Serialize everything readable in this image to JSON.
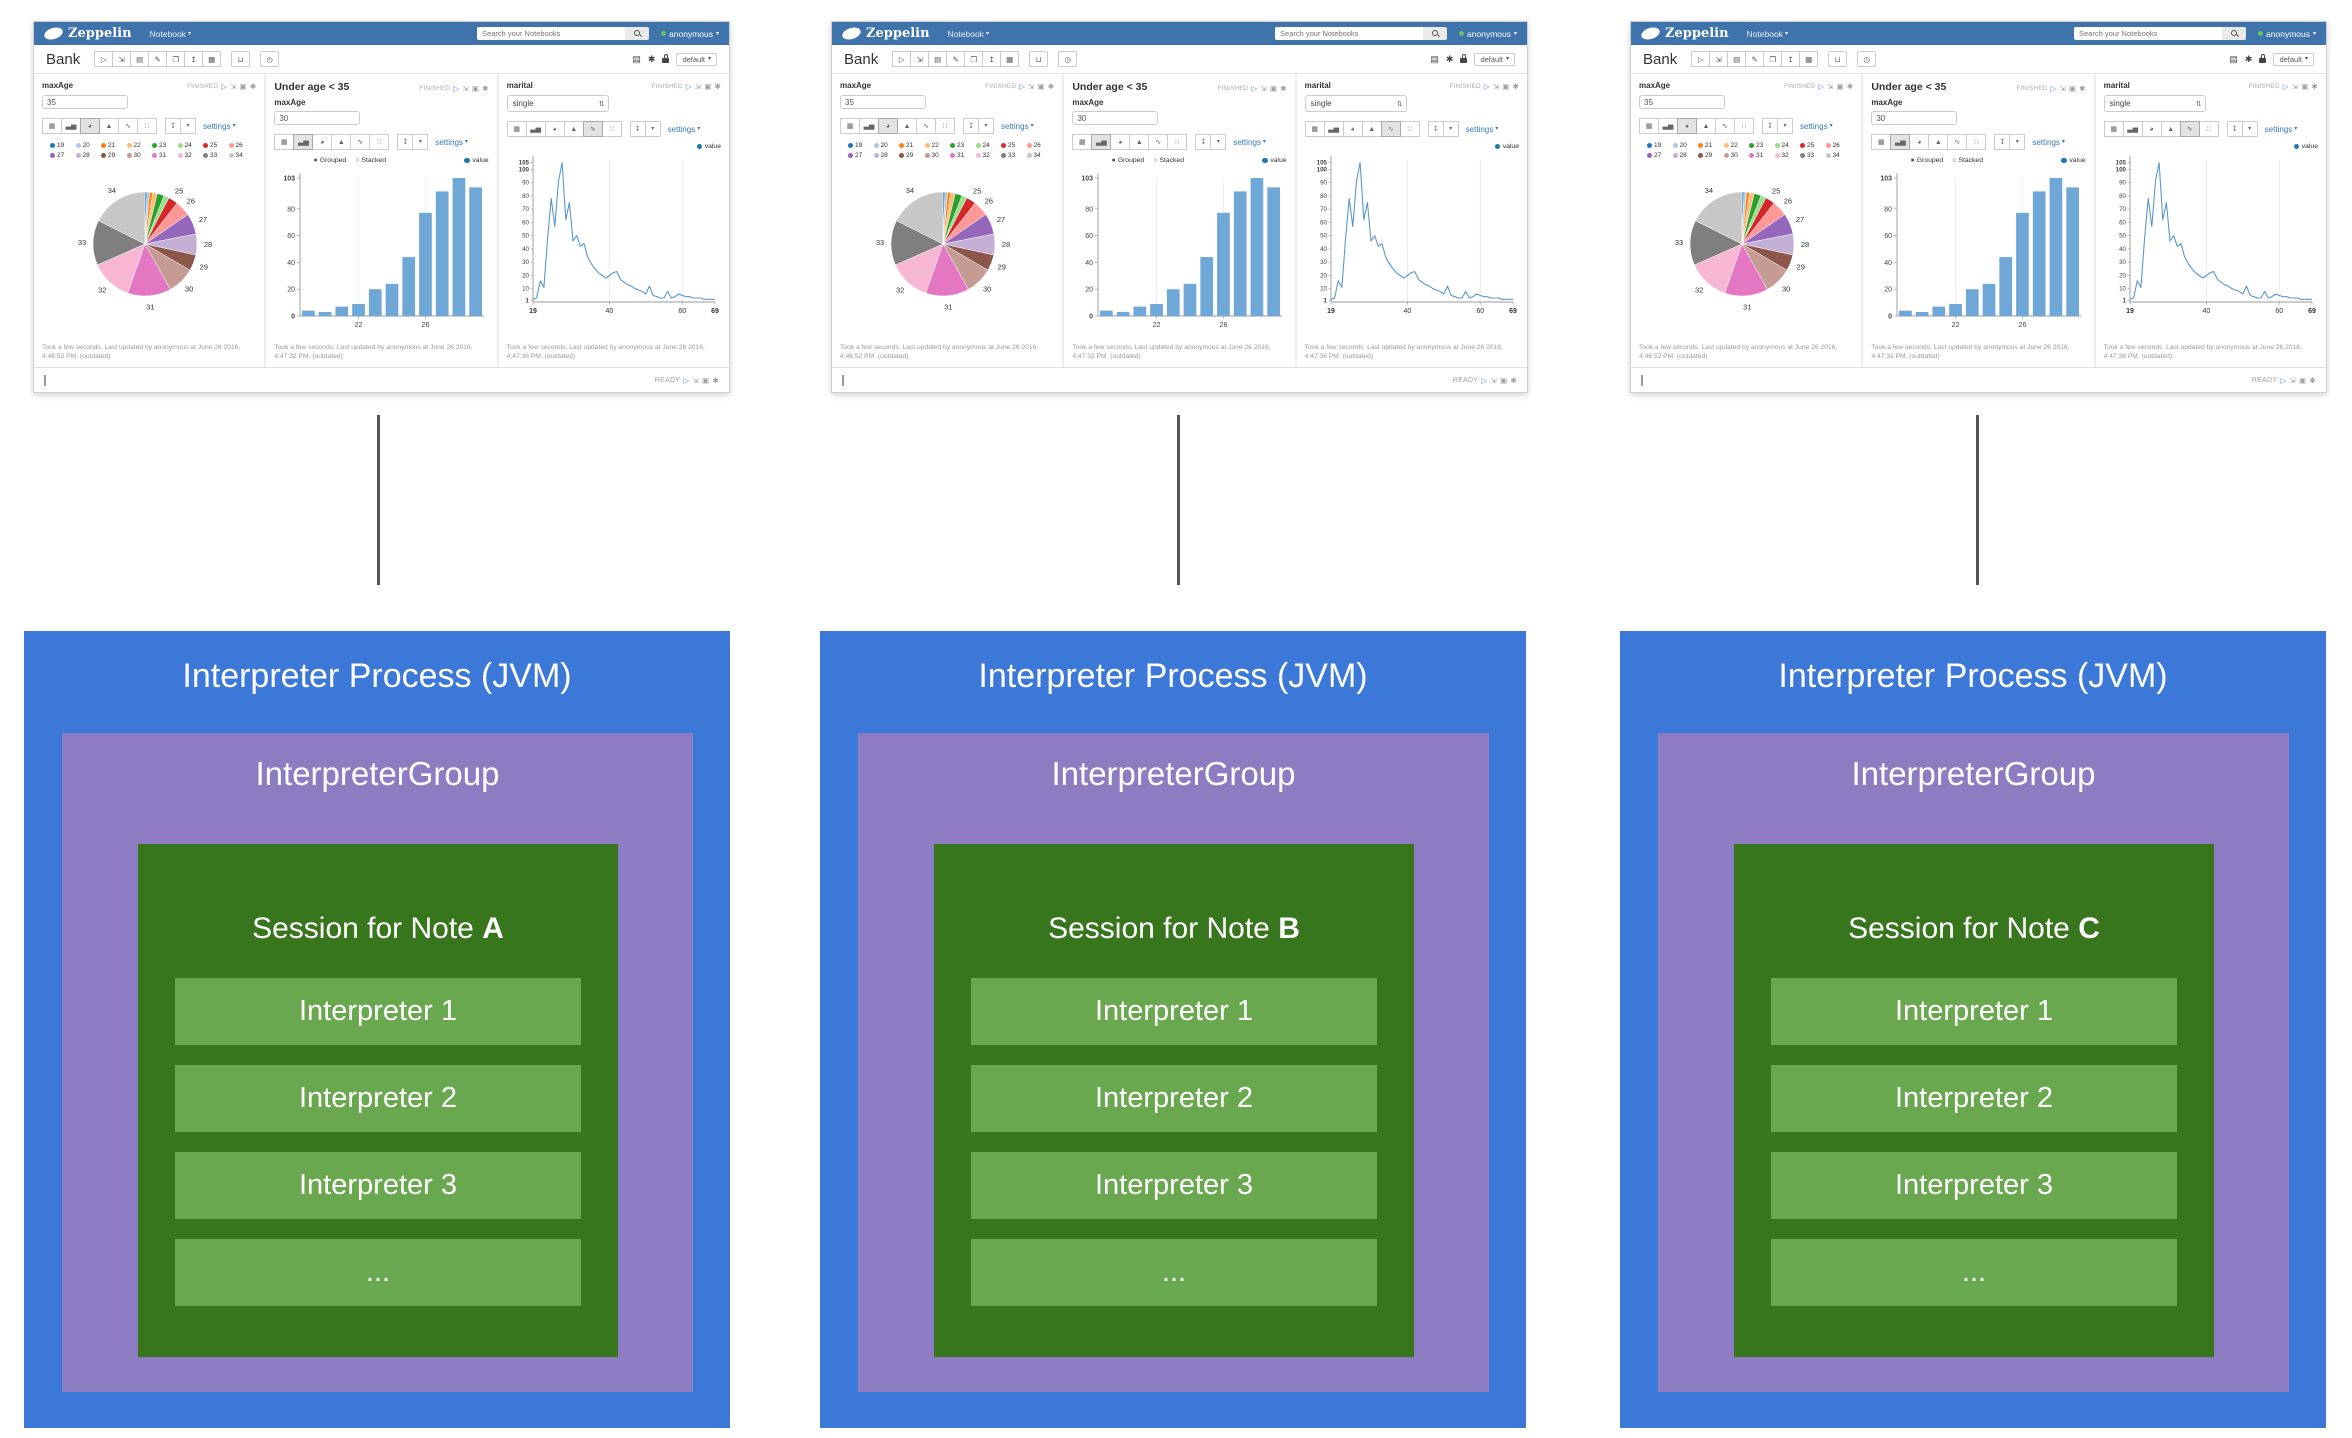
{
  "navbar": {
    "brand": "Zeppelin",
    "menu": "Notebook",
    "search_placeholder": "Search your Notebooks",
    "user": "anonymous"
  },
  "note": {
    "title": "Bank",
    "default_interpreter": "default"
  },
  "paragraph1": {
    "title": "maxAge",
    "status": "FINISHED",
    "input_value": "35",
    "settings": "settings"
  },
  "paragraph2": {
    "title": "Under age < 35",
    "field_label": "maxAge",
    "status": "FINISHED",
    "input_value": "30",
    "radio_grouped": "Grouped",
    "radio_stacked": "Stacked",
    "legend_value": "value",
    "settings": "settings"
  },
  "paragraph3": {
    "title": "marital",
    "status": "FINISHED",
    "select_value": "single",
    "legend_value": "value",
    "settings": "settings"
  },
  "footers": {
    "p1": "Took a few seconds. Last updated by anonymous at June 26 2016, 4:46:52 PM. (outdated)",
    "p2": "Took a few seconds. Last updated by anonymous at June 26 2016, 4:47:32 PM. (outdated)",
    "p3": "Took a few seconds. Last updated by anonymous at June 26 2016, 4:47:36 PM. (outdated)"
  },
  "bottom_bar": {
    "status": "READY"
  },
  "icons": {
    "play": "▷",
    "expand": "⇲",
    "book": "▣",
    "gear": "✱",
    "caret_down": "▾",
    "table": "▦",
    "bar": "▃▅",
    "pie": "◕",
    "area": "▲",
    "line": "∿",
    "scatter": "∷",
    "download": "↧",
    "run_all": "▷",
    "hide_code": "⇲",
    "hide_output": "▤",
    "clear_output": "✎",
    "clone": "❐",
    "export": "↥",
    "version": "▦",
    "trash": "⊔",
    "clock": "◷",
    "keyboard": "▤",
    "stepper": "⇅",
    "radio_on": "●",
    "radio_off": "○"
  },
  "chart_data": [
    {
      "type": "pie",
      "title": "maxAge distribution (paragraph: maxAge = 35)",
      "labels": [
        "19",
        "20",
        "21",
        "22",
        "23",
        "24",
        "25",
        "26",
        "27",
        "28",
        "29",
        "30",
        "31",
        "32",
        "33",
        "34"
      ],
      "values": [
        0.6,
        0.8,
        1.0,
        1.4,
        2.2,
        1.6,
        3.0,
        4.8,
        6.5,
        6.5,
        5.0,
        8.5,
        13.5,
        13.0,
        14.0,
        17.6
      ],
      "colors": [
        "#1f77b4",
        "#aec7e8",
        "#ff7f0e",
        "#ffbb78",
        "#2ca02c",
        "#98df8a",
        "#d62728",
        "#ff9896",
        "#9467bd",
        "#c5b0d5",
        "#8c564b",
        "#c49c94",
        "#e377c2",
        "#f7b6d2",
        "#7f7f7f",
        "#c7c7c7"
      ],
      "legend_position": "top"
    },
    {
      "type": "bar",
      "title": "Under age < 35 (maxAge = 30)",
      "categories": [
        "19",
        "20",
        "21",
        "22",
        "23",
        "24",
        "25",
        "26",
        "27",
        "28",
        "29"
      ],
      "values": [
        4,
        3,
        7,
        9,
        20,
        24,
        44,
        77,
        93,
        103,
        96
      ],
      "ylim": [
        0,
        103
      ],
      "yticks": [
        0,
        20,
        40,
        60,
        80,
        103
      ],
      "xticks_visible": [
        "22",
        "26"
      ],
      "legend": "value",
      "bar_color": "#6fa8d6",
      "modes": [
        "Grouped",
        "Stacked"
      ],
      "selected_mode": "Grouped"
    },
    {
      "type": "line",
      "title": "marital = single",
      "x": [
        19,
        20,
        21,
        22,
        23,
        24,
        25,
        26,
        27,
        28,
        29,
        30,
        31,
        32,
        33,
        34,
        35,
        36,
        37,
        38,
        39,
        40,
        41,
        42,
        43,
        44,
        45,
        46,
        47,
        48,
        49,
        50,
        51,
        52,
        53,
        54,
        55,
        56,
        57,
        58,
        59,
        60,
        61,
        62,
        63,
        64,
        65,
        66,
        67,
        68,
        69
      ],
      "values": [
        2,
        3,
        16,
        11,
        48,
        78,
        57,
        91,
        105,
        62,
        75,
        46,
        50,
        42,
        44,
        34,
        29,
        25,
        22,
        20,
        18,
        20,
        22,
        23,
        17,
        15,
        13,
        12,
        10,
        9,
        8,
        6,
        12,
        5,
        4,
        3,
        3,
        8,
        3,
        4,
        6,
        5,
        4,
        4,
        3,
        3,
        3,
        2,
        2,
        2,
        2
      ],
      "ylim": [
        0,
        105
      ],
      "yticks": [
        1,
        10,
        20,
        30,
        40,
        50,
        60,
        70,
        80,
        90,
        100,
        105
      ],
      "xticks": [
        19,
        40,
        60,
        69
      ],
      "legend": "value",
      "line_color": "#5b97cb",
      "grid": "vertical-at-xticks"
    }
  ],
  "diagram": {
    "connector_color": "#555555",
    "colors": {
      "process": "#3c78d8",
      "group": "#8e7cc3",
      "session": "#38761d",
      "interpreter": "#6aa84f"
    },
    "processes": [
      {
        "title": "Interpreter Process (JVM)",
        "group_title": "InterpreterGroup",
        "session_prefix": "Session for Note ",
        "note_letter": "A",
        "interpreters": [
          "Interpreter 1",
          "Interpreter 2",
          "Interpreter 3",
          "..."
        ]
      },
      {
        "title": "Interpreter Process (JVM)",
        "group_title": "InterpreterGroup",
        "session_prefix": "Session for Note ",
        "note_letter": "B",
        "interpreters": [
          "Interpreter 1",
          "Interpreter 2",
          "Interpreter 3",
          "..."
        ]
      },
      {
        "title": "Interpreter Process (JVM)",
        "group_title": "InterpreterGroup",
        "session_prefix": "Session for Note ",
        "note_letter": "C",
        "interpreters": [
          "Interpreter 1",
          "Interpreter 2",
          "Interpreter 3",
          "..."
        ]
      }
    ]
  }
}
